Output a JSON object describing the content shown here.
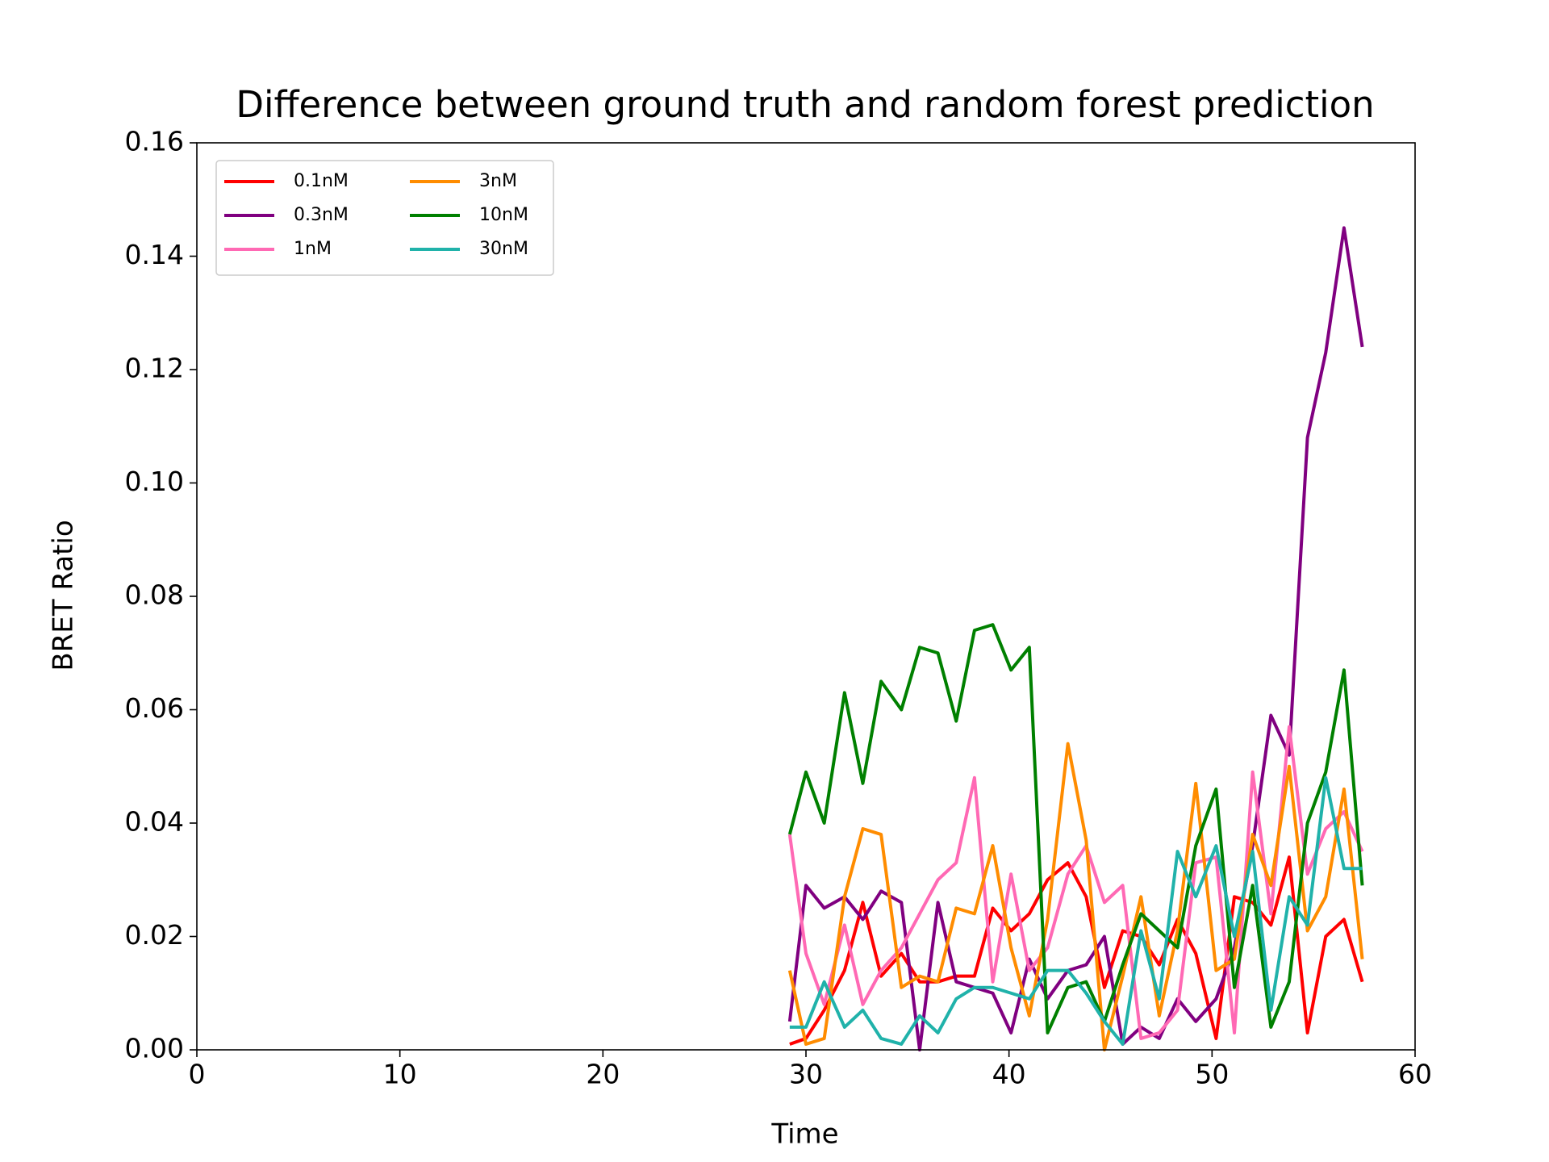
{
  "chart_data": {
    "type": "line",
    "title": "Difference between ground truth and random forest prediction",
    "xlabel": "Time",
    "ylabel": "BRET Ratio",
    "x": [
      29.2,
      30.0,
      30.9,
      31.9,
      32.8,
      33.7,
      34.7,
      35.6,
      36.5,
      37.4,
      38.3,
      39.2,
      40.1,
      41.0,
      41.9,
      42.9,
      43.8,
      44.7,
      45.6,
      46.5,
      47.4,
      48.3,
      49.2,
      50.2,
      51.1,
      52.0,
      52.9,
      53.8,
      54.7,
      55.6,
      56.5,
      57.4
    ],
    "series": [
      {
        "name": "0.1nM",
        "color": "#ff0000",
        "values": [
          0.001,
          0.002,
          0.007,
          0.014,
          0.026,
          0.013,
          0.017,
          0.012,
          0.012,
          0.013,
          0.013,
          0.025,
          0.021,
          0.024,
          0.03,
          0.033,
          0.027,
          0.011,
          0.021,
          0.02,
          0.015,
          0.023,
          0.017,
          0.002,
          0.027,
          0.026,
          0.022,
          0.034,
          0.003,
          0.02,
          0.023,
          0.012
        ]
      },
      {
        "name": "0.3nM",
        "color": "#800080",
        "values": [
          0.005,
          0.029,
          0.025,
          0.027,
          0.023,
          0.028,
          0.026,
          0.0,
          0.026,
          0.012,
          0.011,
          0.01,
          0.003,
          0.016,
          0.009,
          0.014,
          0.015,
          0.02,
          0.001,
          0.004,
          0.002,
          0.009,
          0.005,
          0.009,
          0.018,
          0.036,
          0.059,
          0.052,
          0.108,
          0.123,
          0.145,
          0.124
        ]
      },
      {
        "name": "1nM",
        "color": "#ff69b4",
        "values": [
          0.038,
          0.017,
          0.008,
          0.022,
          0.008,
          0.014,
          0.018,
          0.024,
          0.03,
          0.033,
          0.048,
          0.012,
          0.031,
          0.014,
          0.018,
          0.031,
          0.036,
          0.026,
          0.029,
          0.002,
          0.003,
          0.007,
          0.033,
          0.034,
          0.003,
          0.049,
          0.024,
          0.057,
          0.031,
          0.039,
          0.042,
          0.035
        ]
      },
      {
        "name": "3nM",
        "color": "#ff8c00",
        "values": [
          0.014,
          0.001,
          0.002,
          0.027,
          0.039,
          0.038,
          0.011,
          0.013,
          0.012,
          0.025,
          0.024,
          0.036,
          0.018,
          0.006,
          0.023,
          0.054,
          0.037,
          0.0,
          0.013,
          0.027,
          0.006,
          0.021,
          0.047,
          0.014,
          0.016,
          0.038,
          0.029,
          0.05,
          0.021,
          0.027,
          0.046,
          0.016
        ]
      },
      {
        "name": "10nM",
        "color": "#008000",
        "values": [
          0.038,
          0.049,
          0.04,
          0.063,
          0.047,
          0.065,
          0.06,
          0.071,
          0.07,
          0.058,
          0.074,
          0.075,
          0.067,
          0.071,
          0.003,
          0.011,
          0.012,
          0.005,
          0.015,
          0.024,
          0.021,
          0.018,
          0.036,
          0.046,
          0.011,
          0.029,
          0.004,
          0.012,
          0.04,
          0.049,
          0.067,
          0.029
        ]
      },
      {
        "name": "30nM",
        "color": "#20b2aa",
        "values": [
          0.004,
          0.004,
          0.012,
          0.004,
          0.007,
          0.002,
          0.001,
          0.006,
          0.003,
          0.009,
          0.011,
          0.011,
          0.01,
          0.009,
          0.014,
          0.014,
          0.01,
          0.005,
          0.001,
          0.021,
          0.009,
          0.035,
          0.027,
          0.036,
          0.02,
          0.035,
          0.007,
          0.027,
          0.022,
          0.048,
          0.032,
          0.032
        ]
      }
    ],
    "xlim": [
      0,
      60
    ],
    "xticks": [
      0,
      10,
      20,
      30,
      40,
      50,
      60
    ],
    "ylim": [
      0,
      0.16
    ],
    "yticks": [
      {
        "value": 0,
        "label": "0.00"
      },
      {
        "value": 0.02,
        "label": "0.02"
      },
      {
        "value": 0.04,
        "label": "0.04"
      },
      {
        "value": 0.06,
        "label": "0.06"
      },
      {
        "value": 0.08,
        "label": "0.08"
      },
      {
        "value": 0.1,
        "label": "0.10"
      },
      {
        "value": 0.12,
        "label": "0.12"
      },
      {
        "value": 0.14,
        "label": "0.14"
      },
      {
        "value": 0.16,
        "label": "0.16"
      }
    ],
    "legend": "upper left",
    "grid": false
  }
}
